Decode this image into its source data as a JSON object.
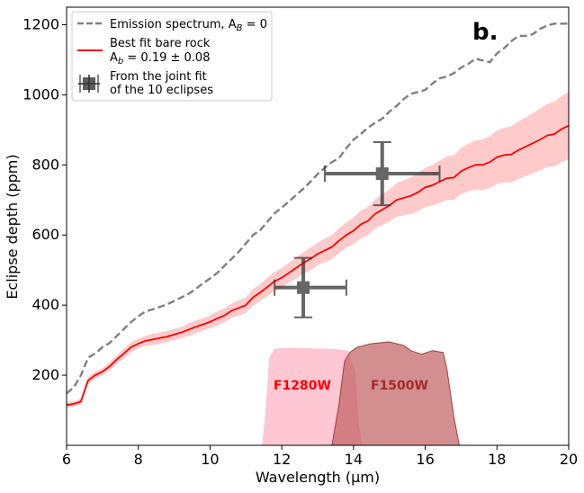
{
  "chart_data": {
    "type": "line",
    "panel_label": "b.",
    "xlabel": "Wavelength (μm)",
    "ylabel": "Eclipse depth (ppm)",
    "xlim": [
      6,
      20
    ],
    "ylim": [
      0,
      1250
    ],
    "xticks": [
      6,
      8,
      10,
      12,
      14,
      16,
      18,
      20
    ],
    "yticks": [
      200,
      400,
      600,
      800,
      1000,
      1200
    ],
    "xtick_labels": [
      "6",
      "8",
      "10",
      "12",
      "14",
      "16",
      "18",
      "20"
    ],
    "ytick_labels": [
      "200",
      "400",
      "600",
      "800",
      "1000",
      "1200"
    ],
    "legend_position": "top-left",
    "legend": {
      "emission_line1": "Emission spectrum, A",
      "emission_sub": "B",
      "emission_tail": " = 0",
      "bestfit_line1": "Best fit bare rock",
      "bestfit_line2a": " A",
      "bestfit_sub": "b",
      "bestfit_line2b": " = 0.19 ± 0.08",
      "joint_line1": "From the joint fit",
      "joint_line2": " of the 10 eclipses"
    },
    "emission_spectrum": {
      "name": "Emission spectrum, A_B = 0",
      "color": "#808080",
      "x": [
        6.0,
        6.2,
        6.4,
        6.6,
        6.8,
        7.0,
        7.2,
        7.4,
        7.6,
        7.8,
        8.0,
        8.2,
        8.4,
        8.6,
        8.8,
        9.0,
        9.2,
        9.4,
        9.6,
        9.8,
        10.0,
        10.2,
        10.4,
        10.6,
        10.8,
        11.0,
        11.2,
        11.4,
        11.6,
        11.8,
        12.0,
        12.2,
        12.4,
        12.6,
        12.8,
        13.0,
        13.2,
        13.4,
        13.6,
        13.8,
        14.0,
        14.2,
        14.4,
        14.6,
        14.8,
        15.0,
        15.2,
        15.4,
        15.6,
        15.8,
        16.0,
        16.2,
        16.4,
        16.6,
        16.8,
        17.0,
        17.2,
        17.4,
        17.6,
        17.8,
        18.0,
        18.2,
        18.4,
        18.6,
        18.8,
        19.0,
        19.2,
        19.4,
        19.6,
        19.8,
        20.0
      ],
      "y": [
        148,
        165,
        200,
        250,
        262,
        280,
        292,
        312,
        332,
        352,
        368,
        382,
        388,
        395,
        402,
        412,
        422,
        432,
        446,
        462,
        476,
        492,
        512,
        532,
        552,
        576,
        600,
        614,
        638,
        662,
        678,
        696,
        714,
        732,
        752,
        774,
        792,
        808,
        820,
        848,
        872,
        888,
        906,
        920,
        932,
        952,
        968,
        988,
        1003,
        1008,
        1014,
        1032,
        1047,
        1052,
        1062,
        1078,
        1088,
        1103,
        1098,
        1093,
        1118,
        1133,
        1153,
        1168,
        1168,
        1173,
        1188,
        1198,
        1203,
        1203,
        1203
      ]
    },
    "bare_rock": {
      "name": "Best fit bare rock, A_b = 0.19 ± 0.08",
      "color": "#ff0000",
      "band_color": "#ffb3b3",
      "x": [
        6.0,
        6.2,
        6.4,
        6.6,
        6.8,
        7.0,
        7.2,
        7.4,
        7.6,
        7.8,
        8.0,
        8.2,
        8.4,
        8.6,
        8.8,
        9.0,
        9.2,
        9.4,
        9.6,
        9.8,
        10.0,
        10.2,
        10.4,
        10.6,
        10.8,
        11.0,
        11.2,
        11.4,
        11.6,
        11.8,
        12.0,
        12.2,
        12.4,
        12.6,
        12.8,
        13.0,
        13.2,
        13.4,
        13.6,
        13.8,
        14.0,
        14.2,
        14.4,
        14.6,
        14.8,
        15.0,
        15.2,
        15.4,
        15.6,
        15.8,
        16.0,
        16.2,
        16.4,
        16.6,
        16.8,
        17.0,
        17.2,
        17.4,
        17.6,
        17.8,
        18.0,
        18.2,
        18.4,
        18.6,
        18.8,
        19.0,
        19.2,
        19.4,
        19.6,
        19.8,
        20.0
      ],
      "y": [
        115,
        118,
        125,
        185,
        200,
        210,
        225,
        245,
        262,
        280,
        290,
        298,
        302,
        306,
        310,
        316,
        322,
        330,
        338,
        345,
        352,
        362,
        370,
        384,
        392,
        400,
        422,
        436,
        452,
        468,
        478,
        492,
        506,
        520,
        532,
        546,
        556,
        566,
        584,
        600,
        612,
        630,
        640,
        660,
        672,
        684,
        700,
        706,
        712,
        722,
        736,
        742,
        752,
        762,
        764,
        782,
        792,
        800,
        800,
        808,
        822,
        828,
        830,
        842,
        852,
        862,
        872,
        884,
        888,
        902,
        912
      ],
      "err": [
        8,
        8,
        8,
        10,
        10,
        10,
        12,
        12,
        14,
        14,
        14,
        14,
        16,
        16,
        16,
        16,
        16,
        18,
        18,
        18,
        18,
        20,
        20,
        20,
        22,
        22,
        24,
        24,
        26,
        26,
        28,
        28,
        30,
        30,
        32,
        32,
        34,
        34,
        36,
        36,
        38,
        40,
        40,
        42,
        44,
        46,
        48,
        50,
        52,
        54,
        56,
        58,
        60,
        62,
        64,
        66,
        68,
        70,
        72,
        74,
        76,
        78,
        80,
        82,
        84,
        86,
        88,
        90,
        92,
        94,
        96
      ]
    },
    "joint_fit": {
      "name": "From the joint fit of the 10 eclipses",
      "color": "#333333",
      "points": [
        {
          "x": 12.6,
          "y": 450,
          "xerr_low": 0.8,
          "xerr_high": 1.2,
          "yerr": 85
        },
        {
          "x": 14.8,
          "y": 775,
          "xerr_low": 1.6,
          "xerr_high": 1.6,
          "yerr": 90
        }
      ]
    },
    "filters": [
      {
        "name": "F1280W",
        "label_color": "#ff0000",
        "fill": "#ffb3c6",
        "x": [
          11.45,
          11.55,
          11.65,
          11.8,
          12.0,
          12.5,
          13.0,
          13.4,
          13.7,
          13.85,
          14.05,
          14.15,
          14.25
        ],
        "y": [
          0,
          100,
          250,
          275,
          278,
          278,
          276,
          275,
          272,
          270,
          210,
          60,
          0
        ]
      },
      {
        "name": "F1500W",
        "label_color": "#a52a2a",
        "fill": "#c06060",
        "x": [
          13.4,
          13.6,
          13.75,
          13.9,
          14.1,
          14.5,
          15.0,
          15.4,
          15.6,
          15.9,
          16.2,
          16.5,
          16.6,
          16.8,
          16.95
        ],
        "y": [
          0,
          120,
          240,
          265,
          280,
          290,
          295,
          285,
          270,
          260,
          270,
          265,
          220,
          80,
          0
        ]
      }
    ]
  }
}
